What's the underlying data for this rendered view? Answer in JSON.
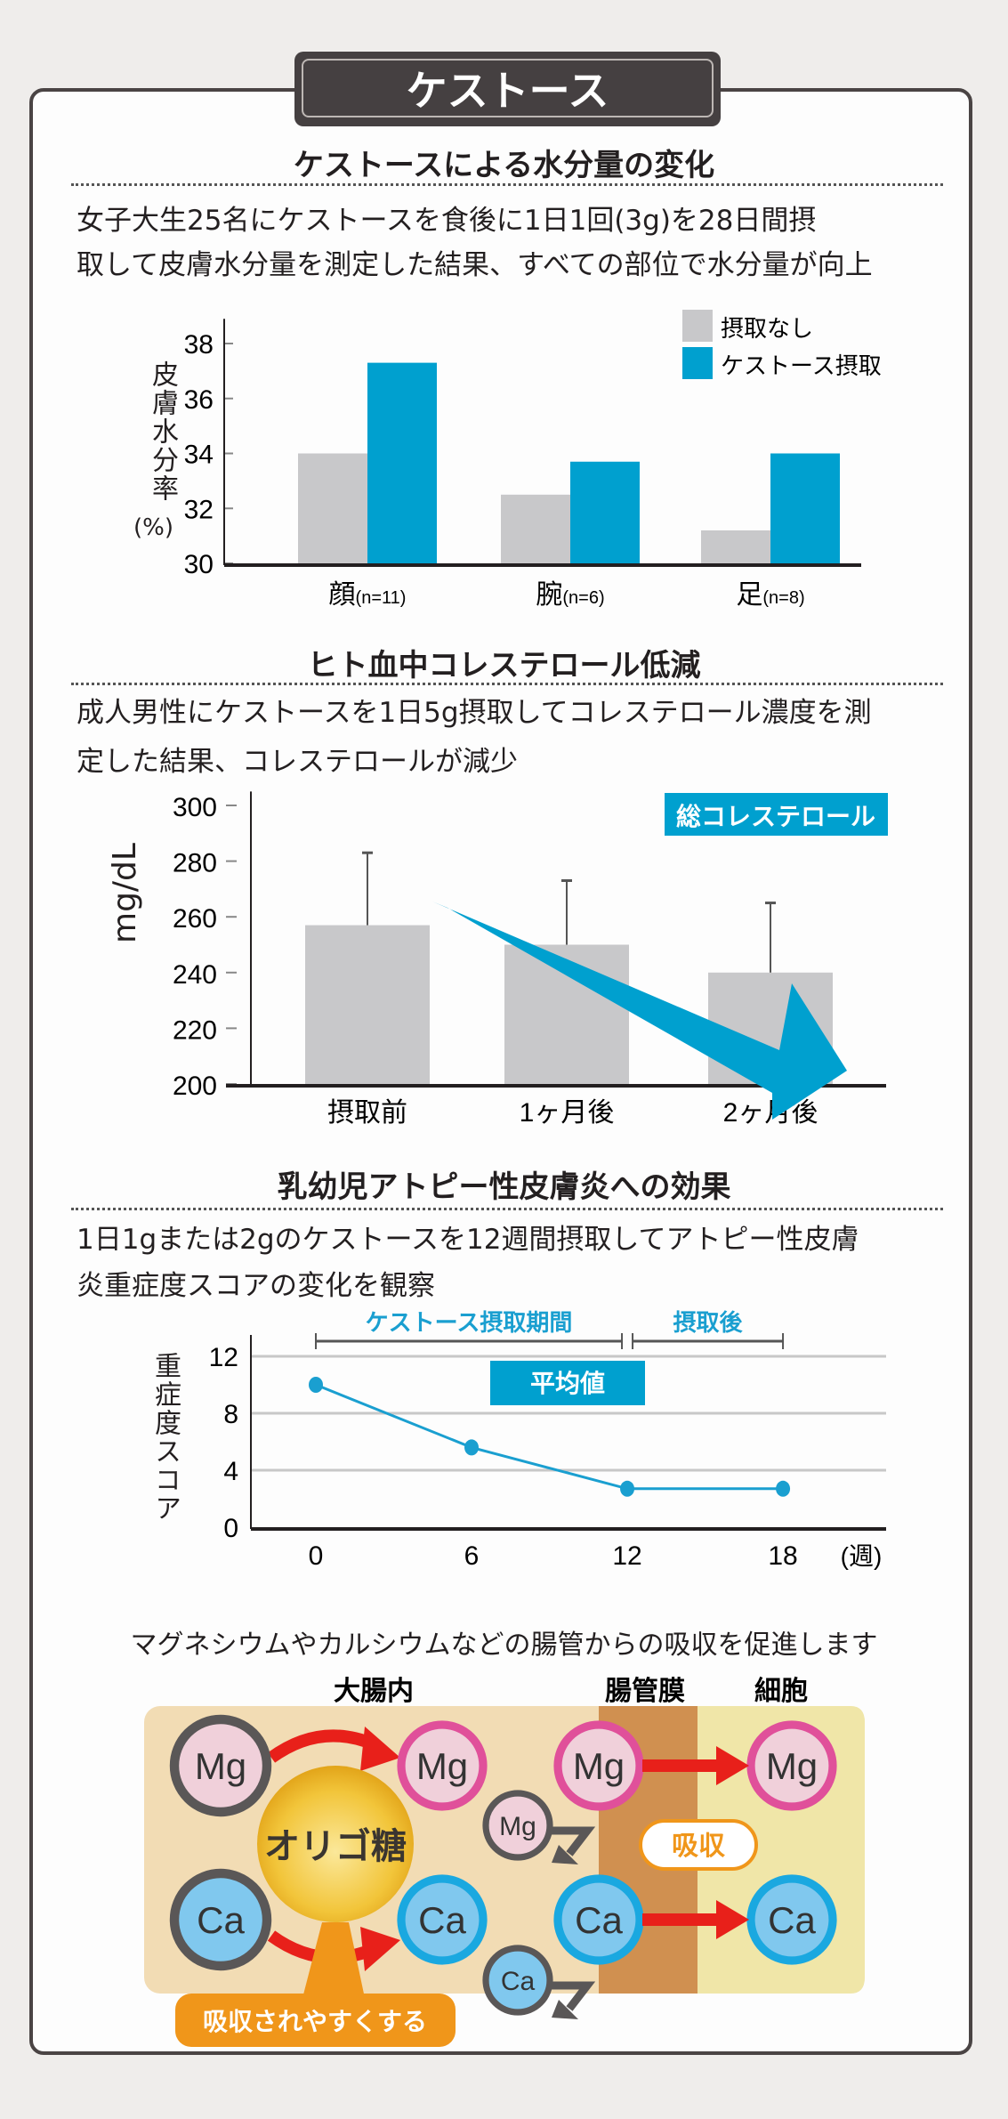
{
  "title": "ケストース",
  "sections": [
    {
      "heading": "ケストースによる水分量の変化",
      "lines": [
        "女子大生25名にケストースを食後に1日1回(3g)を28日間摂",
        "取して皮膚水分量を測定した結果、すべての部位で水分量が向上"
      ]
    },
    {
      "heading": "ヒト血中コレステロール低減",
      "lines": [
        "成人男性にケストースを1日5g摂取してコレステロール濃度を測",
        "定した結果、コレステロールが減少"
      ]
    },
    {
      "heading": "乳幼児アトピー性皮膚炎への効果",
      "lines": [
        "1日1gまたは2gのケストースを12週間摂取してアトピー性皮膚",
        "炎重症度スコアの変化を観察"
      ]
    }
  ],
  "chart_data": [
    {
      "type": "bar",
      "ylabel": "皮膚水分率",
      "ylabel_unit": "(%)",
      "ylim": [
        30,
        38
      ],
      "yticks": [
        "30",
        "32",
        "34",
        "36",
        "38"
      ],
      "categories": [
        "顔",
        "腕",
        "足"
      ],
      "category_notes": [
        "(n=11)",
        "(n=6)",
        "(n=8)"
      ],
      "series": [
        {
          "name": "摂取なし",
          "color": "#c8c8ca",
          "values": [
            34.0,
            32.5,
            31.2
          ]
        },
        {
          "name": "ケストース摂取",
          "color": "#00a0cf",
          "values": [
            37.3,
            33.7,
            34.0
          ]
        }
      ],
      "legend": "top-right",
      "grid": false
    },
    {
      "type": "bar",
      "ylabel": "mg/dL",
      "ylim": [
        200,
        300
      ],
      "yticks": [
        "200",
        "220",
        "240",
        "260",
        "280",
        "300"
      ],
      "categories": [
        "摂取前",
        "1ヶ月後",
        "2ヶ月後"
      ],
      "values": [
        257,
        250,
        240
      ],
      "error_upper": [
        283,
        273,
        265
      ],
      "color": "#c8c8ca",
      "annotation": "総コレステロール",
      "annotation_color": "#00a0cf",
      "grid": false
    },
    {
      "type": "line",
      "ylabel": "重症度スコア",
      "xlabel_unit": "(週)",
      "ylim": [
        0,
        12
      ],
      "yticks": [
        "0",
        "4",
        "8",
        "12"
      ],
      "x": [
        0,
        6,
        12,
        18
      ],
      "xticks": [
        "0",
        "6",
        "12",
        "18"
      ],
      "values": [
        10,
        5.6,
        2.7,
        2.7
      ],
      "color": "#1a9fd0",
      "periods": [
        "ケストース摂取期間",
        "摂取後"
      ],
      "annotation": "平均値",
      "grid": true
    }
  ],
  "diagram": {
    "caption": "マグネシウムやカルシウムなどの腸管からの吸収を促進します",
    "zones": [
      "大腸内",
      "腸管膜",
      "細胞"
    ],
    "oligo": "オリゴ糖",
    "mg": "Mg",
    "ca": "Ca",
    "absorb": "吸収",
    "easier": "吸収されやすくする"
  }
}
